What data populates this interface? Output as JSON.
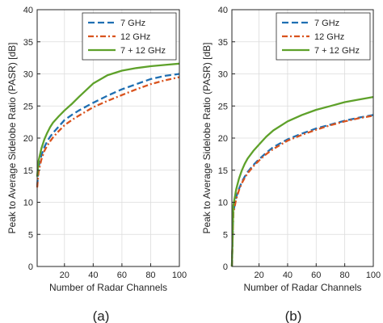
{
  "chart_data": [
    {
      "type": "line",
      "caption": "(a)",
      "xlabel": "Number of Radar Channels",
      "ylabel": "Peak to Average Sidelobe Ratio (PASR) [dB]",
      "xlim": [
        1,
        100
      ],
      "ylim": [
        0,
        40
      ],
      "xticks": [
        20,
        40,
        60,
        80,
        100
      ],
      "yticks": [
        0,
        5,
        10,
        15,
        20,
        25,
        30,
        35,
        40
      ],
      "grid": true,
      "legend_position": "top-right",
      "x": [
        1,
        2,
        4,
        6,
        8,
        10,
        12,
        16,
        20,
        25,
        30,
        40,
        50,
        60,
        70,
        80,
        90,
        100
      ],
      "series": [
        {
          "name": "7 GHz",
          "color": "#1f6fb2",
          "style": "dashed",
          "values": [
            12.5,
            15.5,
            17.3,
            18.6,
            19.5,
            20.2,
            20.8,
            21.8,
            22.8,
            23.6,
            24.3,
            25.5,
            26.6,
            27.6,
            28.4,
            29.2,
            29.7,
            30.0
          ]
        },
        {
          "name": "12 GHz",
          "color": "#d9531e",
          "style": "dashdot",
          "values": [
            12.3,
            14.8,
            16.7,
            18.0,
            18.8,
            19.5,
            20.1,
            21.1,
            22.0,
            22.8,
            23.5,
            24.8,
            25.8,
            26.7,
            27.6,
            28.4,
            29.0,
            29.5
          ]
        },
        {
          "name": "7 + 12 GHz",
          "color": "#5ea12a",
          "style": "solid",
          "values": [
            14.0,
            16.5,
            18.4,
            19.8,
            20.8,
            21.7,
            22.4,
            23.4,
            24.3,
            25.3,
            26.4,
            28.5,
            29.8,
            30.5,
            30.9,
            31.2,
            31.4,
            31.6
          ]
        }
      ]
    },
    {
      "type": "line",
      "caption": "(b)",
      "xlabel": "Number of Radar Channels",
      "ylabel": "Peak to Average Sidelobe Ratio (PASR) [dB]",
      "xlim": [
        1,
        100
      ],
      "ylim": [
        0,
        40
      ],
      "xticks": [
        20,
        40,
        60,
        80,
        100
      ],
      "yticks": [
        0,
        5,
        10,
        15,
        20,
        25,
        30,
        35,
        40
      ],
      "grid": true,
      "legend_position": "top-right",
      "x": [
        1,
        2,
        4,
        6,
        8,
        10,
        12,
        16,
        20,
        25,
        30,
        40,
        50,
        60,
        70,
        80,
        90,
        100
      ],
      "series": [
        {
          "name": "7 GHz",
          "color": "#1f6fb2",
          "style": "dashed",
          "values": [
            0.0,
            8.5,
            10.8,
            12.1,
            13.2,
            14.0,
            14.7,
            15.8,
            16.7,
            17.7,
            18.6,
            19.8,
            20.7,
            21.5,
            22.1,
            22.7,
            23.2,
            23.6
          ]
        },
        {
          "name": "12 GHz",
          "color": "#d9531e",
          "style": "dashdot",
          "values": [
            0.0,
            8.3,
            10.5,
            11.9,
            13.0,
            13.8,
            14.5,
            15.6,
            16.5,
            17.5,
            18.3,
            19.6,
            20.5,
            21.3,
            22.0,
            22.6,
            23.1,
            23.5
          ]
        },
        {
          "name": "7 + 12 GHz",
          "color": "#5ea12a",
          "style": "solid",
          "values": [
            0.0,
            9.5,
            12.0,
            13.7,
            15.0,
            16.0,
            16.8,
            18.0,
            19.0,
            20.2,
            21.2,
            22.6,
            23.6,
            24.4,
            25.0,
            25.6,
            26.0,
            26.4
          ]
        }
      ]
    }
  ]
}
